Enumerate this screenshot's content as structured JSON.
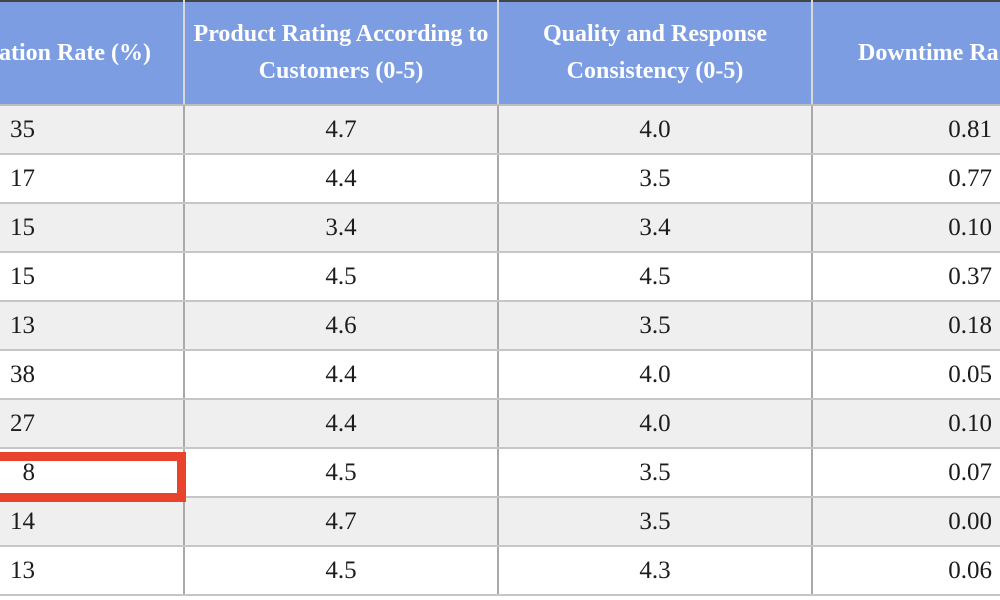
{
  "table": {
    "columns": [
      {
        "header": "ation Rate (%)"
      },
      {
        "header": "Product Rating According to Customers (0-5)"
      },
      {
        "header": "Quality and Response Consistency (0-5)"
      },
      {
        "header": "Downtime Ra"
      }
    ],
    "rows": [
      [
        "35",
        "4.7",
        "4.0",
        "0.81"
      ],
      [
        "17",
        "4.4",
        "3.5",
        "0.77"
      ],
      [
        "15",
        "3.4",
        "3.4",
        "0.10"
      ],
      [
        "15",
        "4.5",
        "4.5",
        "0.37"
      ],
      [
        "13",
        "4.6",
        "3.5",
        "0.18"
      ],
      [
        "38",
        "4.4",
        "4.0",
        "0.05"
      ],
      [
        "27",
        "4.4",
        "4.0",
        "0.10"
      ],
      [
        "8",
        "4.5",
        "3.5",
        "0.07"
      ],
      [
        "14",
        "4.7",
        "3.5",
        "0.00"
      ],
      [
        "13",
        "4.5",
        "4.3",
        "0.06"
      ]
    ],
    "highlight": {
      "row_index": 7,
      "col_index": 0
    }
  },
  "colors": {
    "header_bg": "#7C9DE2",
    "header_text": "#FFFFFF",
    "header_divider": "#D9D9D9",
    "header_underline": "#BDBDBD",
    "row_bg": "#FFFFFF",
    "row_alt": "#EFEFEF",
    "grid_v": "#A9A9A9",
    "grid_h": "#C6C6C6",
    "top_border": "#454545",
    "body_text": "#1C1C1C",
    "highlight": "#E8432C"
  }
}
